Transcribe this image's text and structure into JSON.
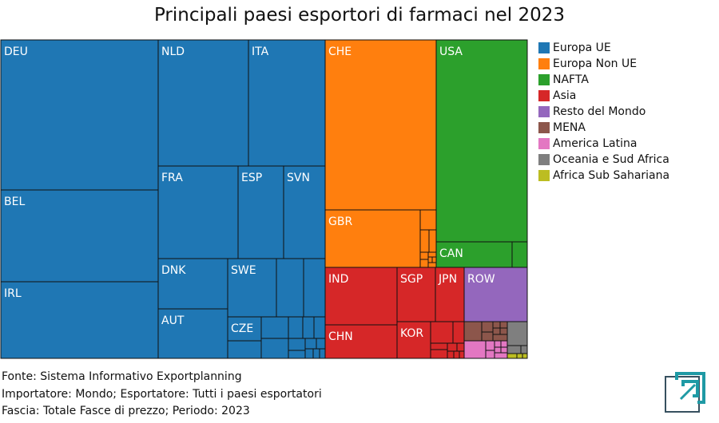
{
  "title": "Principali paesi esportori di farmaci nel 2023",
  "footer": {
    "source": "Fonte: Sistema Informativo Exportplanning",
    "importer": "Importatore: Mondo; Esportatore: Tutti i paesi esportatori",
    "range": "Fascia: Totale Fasce di prezzo; Periodo: 2023"
  },
  "legend": [
    {
      "label": "Europa UE",
      "color": "#1f77b4"
    },
    {
      "label": "Europa Non UE",
      "color": "#ff7f0e"
    },
    {
      "label": "NAFTA",
      "color": "#2ca02c"
    },
    {
      "label": "Asia",
      "color": "#d62728"
    },
    {
      "label": "Resto del Mondo",
      "color": "#9467bd"
    },
    {
      "label": "MENA",
      "color": "#8c564b"
    },
    {
      "label": "America Latina",
      "color": "#e377c2"
    },
    {
      "label": "Oceania e Sud Africa",
      "color": "#7f7f7f"
    },
    {
      "label": "Africa Sub Sahariana",
      "color": "#bcbd22"
    }
  ],
  "chart_data": {
    "type": "treemap",
    "title": "Principali paesi esportori di farmaci nel 2023",
    "groups": [
      {
        "name": "Europa UE",
        "color": "#1f77b4",
        "countries": [
          "DEU",
          "BEL",
          "IRL",
          "NLD",
          "ITA",
          "FRA",
          "ESP",
          "SVN",
          "DNK",
          "AUT",
          "SWE",
          "CZE"
        ]
      },
      {
        "name": "Europa Non UE",
        "color": "#ff7f0e",
        "countries": [
          "CHE",
          "GBR"
        ]
      },
      {
        "name": "NAFTA",
        "color": "#2ca02c",
        "countries": [
          "USA",
          "CAN"
        ]
      },
      {
        "name": "Asia",
        "color": "#d62728",
        "countries": [
          "IND",
          "SGP",
          "JPN",
          "CHN",
          "KOR"
        ]
      },
      {
        "name": "Resto del Mondo",
        "color": "#9467bd",
        "countries": [
          "ROW"
        ]
      },
      {
        "name": "MENA",
        "color": "#8c564b",
        "countries": []
      },
      {
        "name": "America Latina",
        "color": "#e377c2",
        "countries": []
      },
      {
        "name": "Oceania e Sud Africa",
        "color": "#7f7f7f",
        "countries": []
      },
      {
        "name": "Africa Sub Sahariana",
        "color": "#bcbd22",
        "countries": []
      }
    ]
  }
}
